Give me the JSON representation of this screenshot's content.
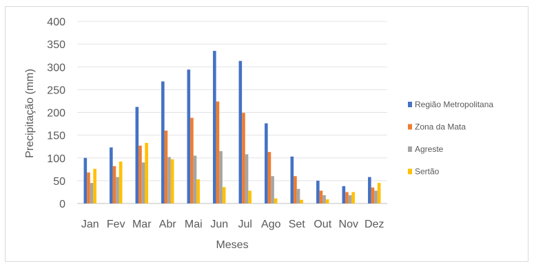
{
  "chart_data": {
    "type": "bar",
    "title": "",
    "xlabel": "Meses",
    "ylabel": "Precipitação (mm)",
    "ylim": [
      0,
      400
    ],
    "yticks": [
      0,
      50,
      100,
      150,
      200,
      250,
      300,
      350,
      400
    ],
    "grid": true,
    "legend_position": "right",
    "categories": [
      "Jan",
      "Fev",
      "Mar",
      "Abr",
      "Mai",
      "Jun",
      "Jul",
      "Ago",
      "Set",
      "Out",
      "Nov",
      "Dez"
    ],
    "series": [
      {
        "name": "Região Metropolitana",
        "color": "#4472c4",
        "values": [
          100,
          123,
          212,
          268,
          294,
          335,
          313,
          176,
          103,
          50,
          38,
          58
        ]
      },
      {
        "name": "Zona da Mata",
        "color": "#ed7d31",
        "values": [
          68,
          82,
          127,
          160,
          188,
          224,
          199,
          113,
          60,
          28,
          25,
          35
        ]
      },
      {
        "name": "Agreste",
        "color": "#a5a5a5",
        "values": [
          45,
          58,
          90,
          102,
          105,
          115,
          108,
          60,
          32,
          18,
          18,
          28
        ]
      },
      {
        "name": "Sertão",
        "color": "#ffc000",
        "values": [
          76,
          92,
          133,
          97,
          53,
          36,
          28,
          11,
          8,
          9,
          25,
          45
        ]
      }
    ]
  }
}
